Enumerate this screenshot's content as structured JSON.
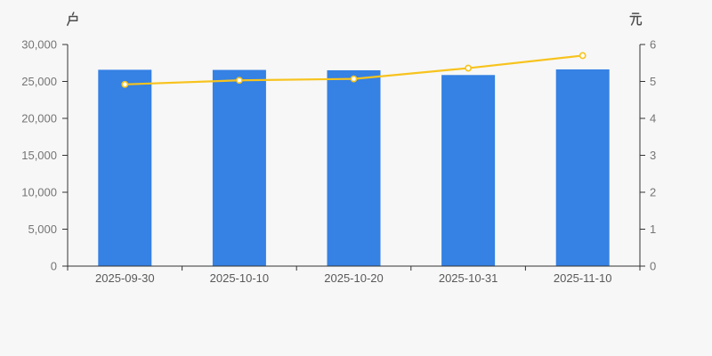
{
  "chart_data": {
    "type": "bar",
    "subtype": "bar-with-line-dual-axis",
    "title": "",
    "categories": [
      "2025-09-30",
      "2025-10-10",
      "2025-10-20",
      "2025-10-31",
      "2025-11-10"
    ],
    "series": [
      {
        "name": "户",
        "type": "bar",
        "yaxis": "left",
        "values": [
          26580,
          26560,
          26510,
          25870,
          26630
        ]
      },
      {
        "name": "元",
        "type": "line",
        "yaxis": "right",
        "values": [
          4.92,
          5.03,
          5.07,
          5.36,
          5.7
        ]
      }
    ],
    "left_axis": {
      "unit_label": "户",
      "min": 0,
      "max": 30000,
      "tick_interval": 5000,
      "tick_labels": [
        "0",
        "5,000",
        "10,000",
        "15,000",
        "20,000",
        "25,000",
        "30,000"
      ]
    },
    "right_axis": {
      "unit_label": "元",
      "min": 0,
      "max": 6,
      "tick_interval": 1,
      "tick_labels": [
        "0",
        "1",
        "2",
        "3",
        "4",
        "5",
        "6"
      ]
    },
    "grid": false,
    "legend": false,
    "colors": {
      "background": "#f7f7f7",
      "axis_line": "#333333",
      "tick_text": "#757575",
      "date_text": "#595959",
      "unit_text": "#4d4d4d",
      "bar": "#3581e4",
      "line": "#f7c31d",
      "marker_fill": "#ffffff"
    }
  }
}
